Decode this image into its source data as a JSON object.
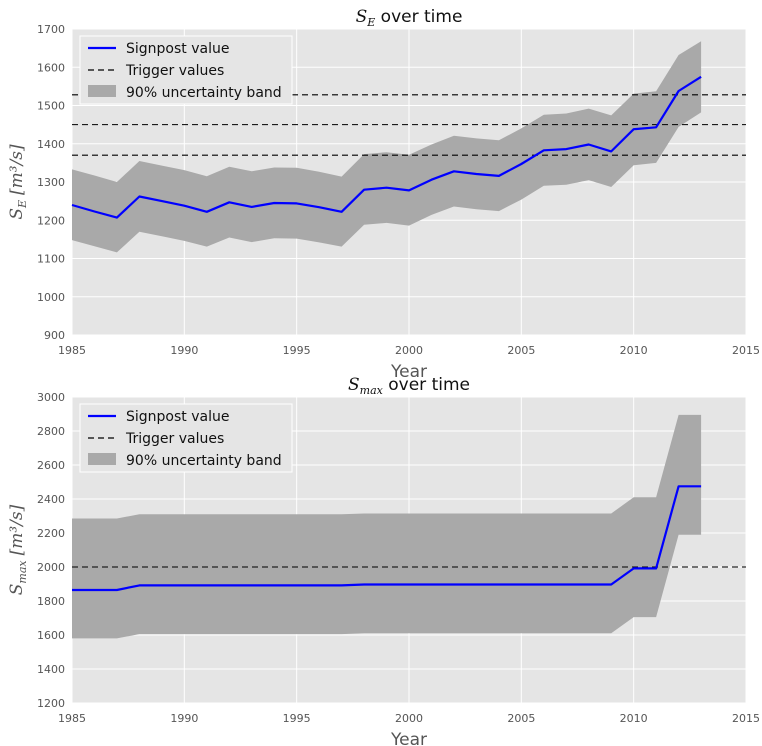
{
  "chart_data": [
    {
      "type": "line",
      "title_prefix": "S",
      "title_sub": "E",
      "title_suffix": " over time",
      "xlabel": "Year",
      "ylabel_sym": "S",
      "ylabel_sub": "E",
      "ylabel_unit": "[m³/s]",
      "xlim": [
        1985,
        2015
      ],
      "ylim": [
        900,
        1700
      ],
      "xticks": [
        1985,
        1990,
        1995,
        2000,
        2005,
        2010,
        2015
      ],
      "yticks": [
        900,
        1000,
        1100,
        1200,
        1300,
        1400,
        1500,
        1600,
        1700
      ],
      "grid": true,
      "legend_position": "top-left",
      "colors": {
        "line": "#0000ff",
        "band": "#a9a9a9",
        "trigger": "#000000"
      },
      "legend": [
        "Signpost value",
        "Trigger values",
        "90% uncertainty band"
      ],
      "x": [
        1985,
        1986,
        1987,
        1988,
        1989,
        1990,
        1991,
        1992,
        1993,
        1994,
        1995,
        1996,
        1997,
        1998,
        1999,
        2000,
        2001,
        2002,
        2003,
        2004,
        2005,
        2006,
        2007,
        2008,
        2009,
        2010,
        2011,
        2012,
        2013
      ],
      "series": [
        {
          "name": "Signpost value",
          "values": [
            1240,
            1223,
            1207,
            1262,
            1250,
            1238,
            1222,
            1247,
            1235,
            1245,
            1244,
            1234,
            1222,
            1280,
            1285,
            1278,
            1306,
            1328,
            1321,
            1316,
            1347,
            1383,
            1386,
            1398,
            1380,
            1438,
            1443,
            1538,
            1575
          ]
        }
      ],
      "band": {
        "name": "90% uncertainty band",
        "lower": [
          1148,
          1132,
          1116,
          1170,
          1158,
          1146,
          1131,
          1155,
          1143,
          1153,
          1152,
          1142,
          1131,
          1188,
          1193,
          1186,
          1214,
          1236,
          1229,
          1224,
          1254,
          1290,
          1293,
          1305,
          1287,
          1344,
          1350,
          1444,
          1482
        ],
        "upper": [
          1333,
          1317,
          1300,
          1355,
          1343,
          1331,
          1315,
          1340,
          1328,
          1338,
          1337,
          1327,
          1314,
          1373,
          1378,
          1371,
          1398,
          1421,
          1414,
          1409,
          1440,
          1476,
          1479,
          1492,
          1474,
          1531,
          1537,
          1632,
          1668
        ]
      },
      "triggers": [
        1370,
        1450,
        1528
      ]
    },
    {
      "type": "line",
      "title_prefix": "S",
      "title_sub": "max",
      "title_suffix": " over time",
      "xlabel": "Year",
      "ylabel_sym": "S",
      "ylabel_sub": "max",
      "ylabel_unit": "[m³/s]",
      "xlim": [
        1985,
        2015
      ],
      "ylim": [
        1200,
        3000
      ],
      "xticks": [
        1985,
        1990,
        1995,
        2000,
        2005,
        2010,
        2015
      ],
      "yticks": [
        1200,
        1400,
        1600,
        1800,
        2000,
        2200,
        2400,
        2600,
        2800,
        3000
      ],
      "grid": true,
      "legend_position": "top-left",
      "colors": {
        "line": "#0000ff",
        "band": "#a9a9a9",
        "trigger": "#000000"
      },
      "legend": [
        "Signpost value",
        "Trigger values",
        "90% uncertainty band"
      ],
      "x": [
        1985,
        1986,
        1987,
        1988,
        1989,
        1990,
        1991,
        1992,
        1993,
        1994,
        1995,
        1996,
        1997,
        1998,
        1999,
        2000,
        2001,
        2002,
        2003,
        2004,
        2005,
        2006,
        2007,
        2008,
        2009,
        2010,
        2011,
        2012,
        2013
      ],
      "series": [
        {
          "name": "Signpost value",
          "values": [
            1865,
            1865,
            1865,
            1892,
            1892,
            1892,
            1892,
            1892,
            1892,
            1892,
            1892,
            1892,
            1892,
            1897,
            1897,
            1897,
            1897,
            1897,
            1897,
            1897,
            1897,
            1897,
            1897,
            1897,
            1897,
            1992,
            1992,
            2475,
            2475
          ]
        }
      ],
      "band": {
        "name": "90% uncertainty band",
        "lower": [
          1580,
          1580,
          1580,
          1605,
          1605,
          1605,
          1605,
          1605,
          1605,
          1605,
          1605,
          1605,
          1605,
          1610,
          1610,
          1610,
          1610,
          1610,
          1610,
          1610,
          1610,
          1610,
          1610,
          1610,
          1610,
          1705,
          1705,
          2190,
          2190
        ],
        "upper": [
          2285,
          2285,
          2285,
          2310,
          2310,
          2310,
          2310,
          2310,
          2310,
          2310,
          2310,
          2310,
          2310,
          2315,
          2315,
          2315,
          2315,
          2315,
          2315,
          2315,
          2315,
          2315,
          2315,
          2315,
          2315,
          2410,
          2410,
          2895,
          2895
        ]
      },
      "triggers": [
        2000
      ]
    }
  ]
}
